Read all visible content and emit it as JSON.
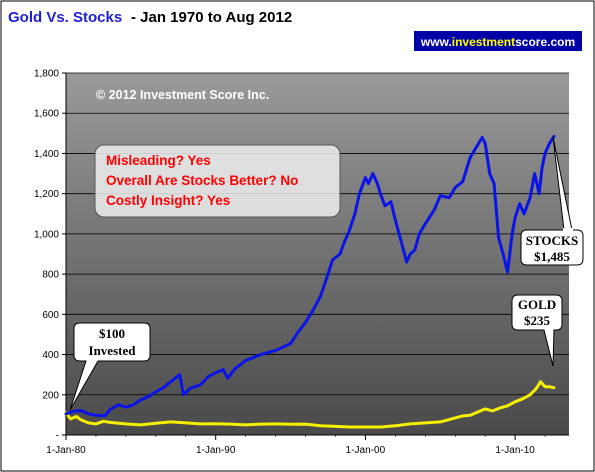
{
  "colors": {
    "title": "#1f1fd6",
    "plot_bg_top": "#9a9a9a",
    "plot_bg_bottom": "#4a4a4a",
    "stocks": "#0a14e6",
    "gold": "#f5f000",
    "note_text": "#ff0000",
    "url_bg": "#0000a8",
    "url_accent": "#ffff00"
  },
  "header": {
    "title": "Gold Vs. Stocks",
    "subtitle": "- Jan 1970 to Aug 2012"
  },
  "url_badge": {
    "prefix": "www.",
    "brand": "investment",
    "suffix": "score.com"
  },
  "copyright": "© 2012 Investment Score Inc.",
  "notes": [
    "Misleading?  Yes",
    "Overall Are Stocks Better?  No",
    "Costly Insight?  Yes"
  ],
  "callouts": {
    "invested_line1": "$100",
    "invested_line2": "Invested",
    "stocks_line1": "STOCKS",
    "stocks_line2": "$1,485",
    "gold_line1": "GOLD",
    "gold_line2": "$235"
  },
  "chart_data": {
    "type": "line",
    "title": "Gold Vs. Stocks",
    "xlabel": "",
    "ylabel": "",
    "x_tick_labels": [
      "1-Jan-80",
      "1-Jan-90",
      "1-Jan-00",
      "1-Jan-10"
    ],
    "x_ticks_year": [
      1980,
      1990,
      2000,
      2010
    ],
    "xlim": [
      1980,
      2013.6
    ],
    "ylim": [
      0,
      1800
    ],
    "y_ticks": [
      0,
      200,
      400,
      600,
      800,
      1000,
      1200,
      1400,
      1600,
      1800
    ],
    "y_tick_labels": [
      "-",
      "200",
      "400",
      "600",
      "800",
      "1,000",
      "1,200",
      "1,400",
      "1,600",
      "1,800"
    ],
    "grid": true,
    "legend": "none",
    "series": [
      {
        "name": "STOCKS",
        "color": "#0a14e6",
        "x": [
          1980.0,
          1980.5,
          1981.0,
          1981.5,
          1982.0,
          1982.6,
          1983.0,
          1983.5,
          1984.0,
          1984.5,
          1985.0,
          1985.5,
          1986.0,
          1986.5,
          1987.0,
          1987.6,
          1987.85,
          1988.3,
          1989.0,
          1989.5,
          1990.0,
          1990.5,
          1990.8,
          1991.3,
          1992.0,
          1993.0,
          1994.0,
          1995.0,
          1995.5,
          1996.0,
          1996.5,
          1997.0,
          1997.5,
          1997.8,
          1998.3,
          1998.6,
          1998.9,
          1999.3,
          1999.6,
          2000.0,
          2000.2,
          2000.5,
          2000.8,
          2001.0,
          2001.3,
          2001.7,
          2002.0,
          2002.4,
          2002.75,
          2003.0,
          2003.3,
          2003.6,
          2004.0,
          2004.6,
          2005.0,
          2005.6,
          2006.0,
          2006.5,
          2007.0,
          2007.4,
          2007.8,
          2008.0,
          2008.3,
          2008.6,
          2008.9,
          2009.2,
          2009.5,
          2009.8,
          2010.0,
          2010.3,
          2010.6,
          2011.0,
          2011.3,
          2011.6,
          2011.8,
          2012.0,
          2012.3,
          2012.6
        ],
        "values": [
          105,
          118,
          122,
          105,
          98,
          96,
          130,
          150,
          138,
          150,
          175,
          190,
          215,
          235,
          265,
          300,
          200,
          232,
          250,
          290,
          310,
          325,
          282,
          330,
          370,
          400,
          420,
          455,
          510,
          560,
          620,
          690,
          800,
          870,
          900,
          960,
          1010,
          1100,
          1200,
          1280,
          1250,
          1300,
          1250,
          1200,
          1140,
          1160,
          1070,
          960,
          860,
          900,
          920,
          1000,
          1050,
          1120,
          1190,
          1180,
          1230,
          1260,
          1380,
          1430,
          1480,
          1450,
          1300,
          1250,
          980,
          900,
          810,
          1000,
          1080,
          1150,
          1100,
          1180,
          1300,
          1200,
          1330,
          1400,
          1450,
          1485
        ]
      },
      {
        "name": "GOLD",
        "color": "#f5f000",
        "x": [
          1980.0,
          1980.3,
          1980.7,
          1981.0,
          1981.5,
          1982.0,
          1982.5,
          1983.0,
          1984.0,
          1985.0,
          1986.0,
          1987.0,
          1988.0,
          1989.0,
          1990.0,
          1991.0,
          1992.0,
          1993.0,
          1994.0,
          1995.0,
          1996.0,
          1997.0,
          1998.0,
          1999.0,
          2000.0,
          2001.0,
          2002.0,
          2003.0,
          2004.0,
          2005.0,
          2006.0,
          2006.5,
          2007.0,
          2008.0,
          2008.5,
          2009.0,
          2009.5,
          2010.0,
          2010.5,
          2011.0,
          2011.4,
          2011.7,
          2012.0,
          2012.3,
          2012.6
        ],
        "values": [
          110,
          80,
          92,
          75,
          60,
          55,
          68,
          62,
          55,
          50,
          58,
          65,
          60,
          55,
          56,
          54,
          50,
          54,
          55,
          53,
          54,
          46,
          43,
          40,
          40,
          40,
          46,
          55,
          60,
          65,
          85,
          95,
          98,
          130,
          120,
          135,
          145,
          165,
          180,
          200,
          230,
          265,
          240,
          240,
          235
        ]
      }
    ]
  }
}
